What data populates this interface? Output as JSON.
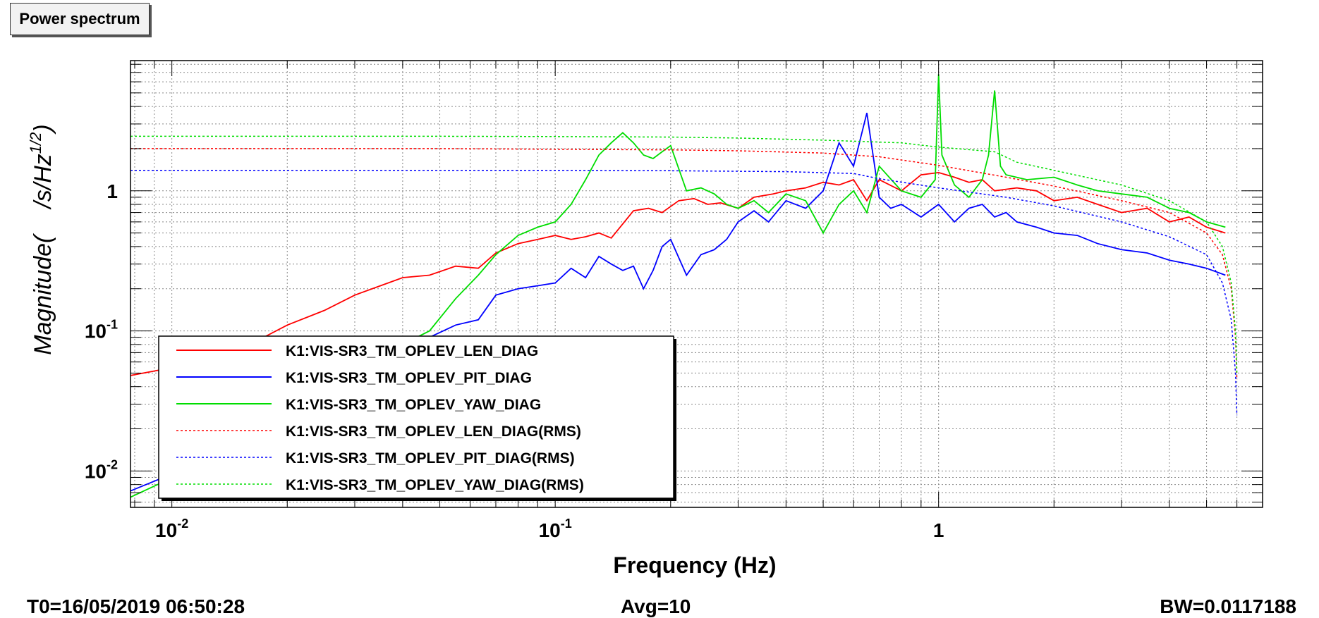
{
  "window": {
    "title": "Power spectrum"
  },
  "footer": {
    "t0": "T0=16/05/2019 06:50:28",
    "avg": "Avg=10",
    "bw": "BW=0.0117188"
  },
  "chart_data": {
    "type": "line",
    "title": "Power spectrum",
    "xlabel": "Frequency (Hz)",
    "ylabel_main": "Magnitude(",
    "ylabel_unit": "/s/Hz",
    "ylabel_exp": "1/2",
    "ylabel_close": ")",
    "x_scale": "log",
    "y_scale": "log",
    "xlim": [
      0.0078,
      7.0
    ],
    "ylim": [
      0.0055,
      8.5
    ],
    "grid": true,
    "legend_position": "bottom-left",
    "x_ticks": [
      {
        "value": 0.01,
        "base": "10",
        "exp": "-2"
      },
      {
        "value": 0.1,
        "base": "10",
        "exp": "-1"
      },
      {
        "value": 1,
        "base": "1",
        "exp": ""
      }
    ],
    "y_ticks": [
      {
        "value": 0.01,
        "base": "10",
        "exp": "-2"
      },
      {
        "value": 0.1,
        "base": "10",
        "exp": "-1"
      },
      {
        "value": 1,
        "base": "1",
        "exp": ""
      }
    ],
    "series": [
      {
        "name": "K1:VIS-SR3_TM_OPLEV_LEN_DIAG",
        "color": "#ff0000",
        "style": "solid",
        "x": [
          0.0078,
          0.012,
          0.016,
          0.02,
          0.025,
          0.03,
          0.035,
          0.04,
          0.047,
          0.055,
          0.063,
          0.07,
          0.08,
          0.09,
          0.1,
          0.11,
          0.12,
          0.13,
          0.14,
          0.15,
          0.16,
          0.175,
          0.19,
          0.21,
          0.23,
          0.25,
          0.27,
          0.3,
          0.33,
          0.37,
          0.4,
          0.45,
          0.5,
          0.55,
          0.6,
          0.65,
          0.7,
          0.8,
          0.9,
          1.0,
          1.1,
          1.2,
          1.3,
          1.4,
          1.6,
          1.8,
          2.0,
          2.3,
          2.6,
          3.0,
          3.5,
          4.0,
          4.5,
          5.0,
          5.6
        ],
        "y": [
          0.048,
          0.06,
          0.08,
          0.11,
          0.14,
          0.18,
          0.21,
          0.24,
          0.25,
          0.29,
          0.28,
          0.36,
          0.42,
          0.45,
          0.48,
          0.45,
          0.47,
          0.5,
          0.46,
          0.58,
          0.72,
          0.75,
          0.7,
          0.85,
          0.88,
          0.8,
          0.82,
          0.75,
          0.9,
          0.95,
          1.0,
          1.05,
          1.15,
          1.1,
          1.2,
          0.85,
          1.2,
          1.0,
          1.3,
          1.35,
          1.25,
          1.15,
          1.2,
          1.0,
          1.05,
          1.0,
          0.85,
          0.9,
          0.8,
          0.7,
          0.75,
          0.6,
          0.65,
          0.55,
          0.5
        ]
      },
      {
        "name": "K1:VIS-SR3_TM_OPLEV_PIT_DIAG",
        "color": "#0000ff",
        "style": "solid",
        "x": [
          0.0078,
          0.015,
          0.025,
          0.04,
          0.047,
          0.055,
          0.063,
          0.07,
          0.08,
          0.09,
          0.1,
          0.11,
          0.12,
          0.13,
          0.14,
          0.15,
          0.16,
          0.17,
          0.18,
          0.19,
          0.2,
          0.22,
          0.24,
          0.26,
          0.28,
          0.3,
          0.33,
          0.36,
          0.4,
          0.45,
          0.5,
          0.55,
          0.6,
          0.65,
          0.7,
          0.75,
          0.8,
          0.9,
          1.0,
          1.1,
          1.2,
          1.3,
          1.4,
          1.5,
          1.6,
          1.8,
          2.0,
          2.3,
          2.6,
          3.0,
          3.5,
          4.0,
          4.5,
          5.0,
          5.6
        ],
        "y": [
          0.0072,
          0.015,
          0.04,
          0.08,
          0.09,
          0.11,
          0.12,
          0.18,
          0.2,
          0.21,
          0.22,
          0.28,
          0.24,
          0.34,
          0.3,
          0.27,
          0.29,
          0.2,
          0.27,
          0.4,
          0.45,
          0.25,
          0.35,
          0.38,
          0.45,
          0.6,
          0.72,
          0.6,
          0.85,
          0.75,
          1.0,
          2.2,
          1.5,
          3.6,
          0.9,
          0.75,
          0.8,
          0.65,
          0.8,
          0.6,
          0.75,
          0.8,
          0.65,
          0.7,
          0.6,
          0.55,
          0.5,
          0.48,
          0.42,
          0.38,
          0.36,
          0.32,
          0.3,
          0.28,
          0.25
        ]
      },
      {
        "name": "K1:VIS-SR3_TM_OPLEV_YAW_DIAG",
        "color": "#00dd00",
        "style": "solid",
        "x": [
          0.0078,
          0.015,
          0.025,
          0.04,
          0.047,
          0.055,
          0.063,
          0.07,
          0.08,
          0.09,
          0.1,
          0.11,
          0.12,
          0.13,
          0.14,
          0.15,
          0.16,
          0.17,
          0.18,
          0.19,
          0.2,
          0.22,
          0.24,
          0.26,
          0.28,
          0.3,
          0.33,
          0.36,
          0.4,
          0.45,
          0.5,
          0.55,
          0.6,
          0.65,
          0.7,
          0.8,
          0.9,
          0.98,
          1.0,
          1.02,
          1.1,
          1.2,
          1.3,
          1.35,
          1.4,
          1.45,
          1.5,
          1.7,
          2.0,
          2.3,
          2.6,
          3.0,
          3.5,
          4.0,
          4.5,
          5.0,
          5.6
        ],
        "y": [
          0.0065,
          0.015,
          0.03,
          0.08,
          0.1,
          0.17,
          0.25,
          0.35,
          0.48,
          0.55,
          0.6,
          0.8,
          1.2,
          1.8,
          2.2,
          2.6,
          2.2,
          1.8,
          1.7,
          1.9,
          2.1,
          1.0,
          1.05,
          0.95,
          0.8,
          0.75,
          0.85,
          0.7,
          0.95,
          0.85,
          0.5,
          0.8,
          1.0,
          0.7,
          1.5,
          1.0,
          0.9,
          1.2,
          6.8,
          1.8,
          1.1,
          0.9,
          1.2,
          1.8,
          5.2,
          1.5,
          1.3,
          1.2,
          1.25,
          1.1,
          1.0,
          0.95,
          0.9,
          0.75,
          0.7,
          0.6,
          0.55
        ]
      },
      {
        "name": "K1:VIS-SR3_TM_OPLEV_LEN_DIAG(RMS)",
        "color": "#ff0000",
        "style": "dotted",
        "x": [
          0.0078,
          0.05,
          0.1,
          0.2,
          0.3,
          0.5,
          0.7,
          1.0,
          1.5,
          2.0,
          3.0,
          4.0,
          5.0,
          5.5,
          5.8,
          5.95,
          6.0
        ],
        "y": [
          2.0,
          2.0,
          1.98,
          1.96,
          1.93,
          1.86,
          1.75,
          1.52,
          1.25,
          1.08,
          0.85,
          0.7,
          0.5,
          0.35,
          0.2,
          0.09,
          0.045
        ]
      },
      {
        "name": "K1:VIS-SR3_TM_OPLEV_PIT_DIAG(RMS)",
        "color": "#0000ff",
        "style": "dotted",
        "x": [
          0.0078,
          0.05,
          0.1,
          0.2,
          0.4,
          0.6,
          0.7,
          1.0,
          1.5,
          2.0,
          3.0,
          4.0,
          5.0,
          5.5,
          5.8,
          5.95,
          6.0
        ],
        "y": [
          1.4,
          1.4,
          1.4,
          1.39,
          1.37,
          1.33,
          1.22,
          1.05,
          0.9,
          0.78,
          0.6,
          0.47,
          0.35,
          0.22,
          0.12,
          0.05,
          0.025
        ]
      },
      {
        "name": "K1:VIS-SR3_TM_OPLEV_YAW_DIAG(RMS)",
        "color": "#00dd00",
        "style": "dotted",
        "x": [
          0.0078,
          0.05,
          0.1,
          0.2,
          0.3,
          0.5,
          0.8,
          1.0,
          1.4,
          1.6,
          2.0,
          3.0,
          4.0,
          5.0,
          5.5,
          5.8,
          5.95,
          6.0
        ],
        "y": [
          2.45,
          2.45,
          2.44,
          2.42,
          2.38,
          2.3,
          2.2,
          2.05,
          1.9,
          1.6,
          1.4,
          1.1,
          0.85,
          0.6,
          0.4,
          0.22,
          0.1,
          0.05
        ]
      }
    ]
  }
}
